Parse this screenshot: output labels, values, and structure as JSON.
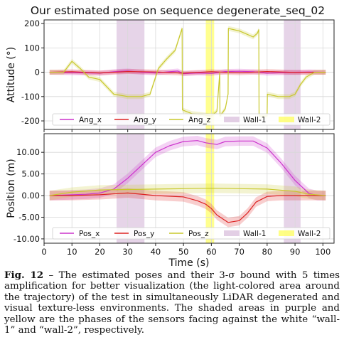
{
  "chart_data": [
    {
      "type": "line",
      "title": "Our estimated pose on sequence degenerate_seq_02",
      "xlabel": "",
      "ylabel": "Attitude (°)",
      "xlim": [
        0,
        104
      ],
      "ylim": [
        -235,
        215
      ],
      "xticks": [
        0,
        10,
        20,
        30,
        40,
        50,
        60,
        70,
        80,
        90,
        100
      ],
      "yticks": [
        200,
        100,
        0,
        -100,
        -200
      ],
      "grid": true,
      "legend": "bottom",
      "shaded_regions": [
        {
          "name": "Wall-1",
          "color": "#c8a0cc",
          "spans": [
            [
              26,
              36
            ],
            [
              86,
              92
            ]
          ]
        },
        {
          "name": "Wall-2",
          "color": "#ffff33",
          "spans": [
            [
              58,
              61
            ]
          ]
        }
      ],
      "series": [
        {
          "name": "Ang_x",
          "color": "#cc33cc",
          "x": [
            2,
            10,
            20,
            25,
            30,
            35,
            40,
            45,
            48,
            50,
            55,
            60,
            65,
            70,
            75,
            80,
            85,
            90,
            95,
            101
          ],
          "y": [
            0,
            -2,
            -4,
            2,
            5,
            0,
            -3,
            2,
            5,
            -6,
            -3,
            -5,
            3,
            4,
            2,
            -4,
            -2,
            0,
            1,
            0
          ]
        },
        {
          "name": "Ang_y",
          "color": "#dd2222",
          "x": [
            2,
            10,
            20,
            30,
            40,
            50,
            60,
            70,
            80,
            90,
            101
          ],
          "y": [
            0,
            2,
            -3,
            3,
            1,
            -4,
            2,
            -2,
            3,
            -1,
            0
          ]
        },
        {
          "name": "Ang_z",
          "color": "#c8c82c",
          "x": [
            2,
            7,
            10,
            13,
            16,
            20,
            25,
            30,
            35,
            38,
            41,
            44,
            47,
            49.5,
            49.6,
            53,
            57,
            60,
            62,
            63,
            63.1,
            65,
            66,
            66.1,
            70,
            72,
            75,
            76.5,
            77,
            77.1,
            78,
            80,
            80.1,
            84,
            88,
            90,
            92,
            94,
            97,
            101
          ],
          "y": [
            0,
            0,
            45,
            15,
            -20,
            -30,
            -90,
            -100,
            -100,
            -90,
            15,
            55,
            90,
            180,
            -155,
            -170,
            -175,
            -180,
            -160,
            0,
            -180,
            -150,
            -90,
            180,
            170,
            160,
            145,
            160,
            175,
            -180,
            -180,
            -180,
            -90,
            -100,
            -100,
            -90,
            -50,
            -20,
            0,
            0
          ]
        }
      ]
    },
    {
      "type": "line",
      "title": "",
      "xlabel": "Time (s)",
      "ylabel": "Position (m)",
      "xlim": [
        0,
        104
      ],
      "ylim": [
        -11,
        14.3
      ],
      "xticks": [
        0,
        10,
        20,
        30,
        40,
        50,
        60,
        70,
        80,
        90,
        100
      ],
      "yticks": [
        10,
        5,
        0,
        -5,
        -10
      ],
      "grid": true,
      "legend": "bottom",
      "shaded_regions": [
        {
          "name": "Wall-1",
          "color": "#c8a0cc",
          "spans": [
            [
              26,
              36
            ],
            [
              86,
              92
            ]
          ]
        },
        {
          "name": "Wall-2",
          "color": "#ffff33",
          "spans": [
            [
              58,
              61
            ]
          ]
        }
      ],
      "series": [
        {
          "name": "Pos_x",
          "color": "#cc33cc",
          "x": [
            2,
            15,
            20,
            25,
            30,
            35,
            40,
            45,
            50,
            55,
            58,
            62,
            65,
            70,
            75,
            80,
            85,
            90,
            95,
            98,
            101
          ],
          "y": [
            0,
            0.3,
            0.6,
            1.5,
            4,
            7,
            10,
            11.5,
            12.5,
            12.7,
            12.2,
            11.8,
            12.5,
            12.6,
            12.6,
            11,
            7.5,
            3.5,
            0.5,
            0,
            0
          ]
        },
        {
          "name": "Pos_y",
          "color": "#dd2222",
          "x": [
            2,
            10,
            20,
            30,
            40,
            50,
            55,
            58,
            60,
            62,
            66,
            70,
            73,
            76,
            80,
            85,
            90,
            95,
            101
          ],
          "y": [
            0,
            0,
            0.2,
            0.6,
            0,
            -0.3,
            -1.2,
            -2,
            -3,
            -4.5,
            -6.2,
            -5.8,
            -4,
            -1.5,
            -0.2,
            0,
            0,
            0,
            0
          ]
        },
        {
          "name": "Pos_z",
          "color": "#c8c82c",
          "x": [
            2,
            10,
            20,
            30,
            40,
            50,
            60,
            70,
            80,
            90,
            95,
            101
          ],
          "y": [
            0,
            0.8,
            1.3,
            1.4,
            1.5,
            1.6,
            1.7,
            1.6,
            1.5,
            1.0,
            0.3,
            0
          ]
        }
      ]
    }
  ],
  "caption": {
    "label": "Fig. 12",
    "text": " – The estimated poses and their 3-σ bound with 5 times amplification for better visualization (the light-colored area around the trajectory) of the test in simultaneously LiDAR degenerated and visual texture-less environments. The shaded areas in purple and yellow are the phases of the sensors facing against the white “wall-1” and “wall-2”, respectively."
  }
}
